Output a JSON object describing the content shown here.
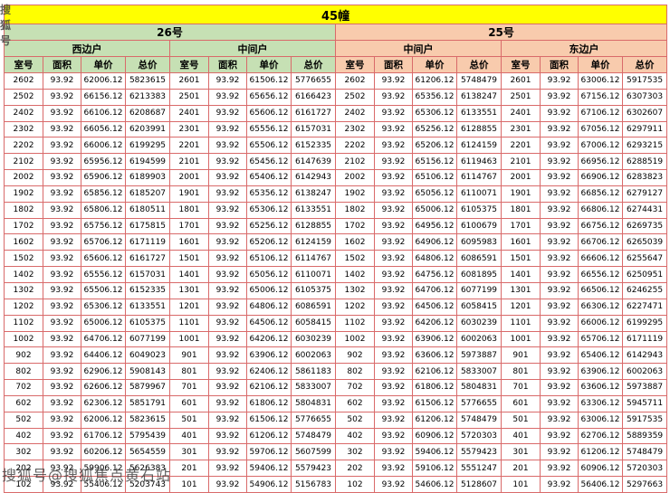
{
  "table": {
    "building_label": "45幢",
    "colors": {
      "border": "#d96a6a",
      "title_bg": "#ffff00",
      "section_26_bg": "#c6e0b4",
      "section_25_bg": "#f8cbad",
      "watermark": "#3f3f3f"
    },
    "sections": [
      {
        "label": "26号",
        "bg": "#c6e0b4",
        "groups": [
          {
            "label": "西边户",
            "columns": [
              "室号",
              "面积",
              "单价",
              "总价"
            ],
            "rows": [
              [
                "2602",
                "93.92",
                "62006.12",
                "5823615"
              ],
              [
                "2502",
                "93.92",
                "66156.12",
                "6213383"
              ],
              [
                "2402",
                "93.92",
                "66106.12",
                "6208687"
              ],
              [
                "2302",
                "93.92",
                "66056.12",
                "6203991"
              ],
              [
                "2202",
                "93.92",
                "66006.12",
                "6199295"
              ],
              [
                "2102",
                "93.92",
                "65956.12",
                "6194599"
              ],
              [
                "2002",
                "93.92",
                "65906.12",
                "6189903"
              ],
              [
                "1902",
                "93.92",
                "65856.12",
                "6185207"
              ],
              [
                "1802",
                "93.92",
                "65806.12",
                "6180511"
              ],
              [
                "1702",
                "93.92",
                "65756.12",
                "6175815"
              ],
              [
                "1602",
                "93.92",
                "65706.12",
                "6171119"
              ],
              [
                "1502",
                "93.92",
                "65606.12",
                "6161727"
              ],
              [
                "1402",
                "93.92",
                "65556.12",
                "6157031"
              ],
              [
                "1302",
                "93.92",
                "65506.12",
                "6152335"
              ],
              [
                "1202",
                "93.92",
                "65306.12",
                "6133551"
              ],
              [
                "1102",
                "93.92",
                "65006.12",
                "6105375"
              ],
              [
                "1002",
                "93.92",
                "64706.12",
                "6077199"
              ],
              [
                "902",
                "93.92",
                "64406.12",
                "6049023"
              ],
              [
                "802",
                "93.92",
                "62906.12",
                "5908143"
              ],
              [
                "702",
                "93.92",
                "62606.12",
                "5879967"
              ],
              [
                "602",
                "93.92",
                "62306.12",
                "5851791"
              ],
              [
                "502",
                "93.92",
                "62006.12",
                "5823615"
              ],
              [
                "402",
                "93.92",
                "61706.12",
                "5795439"
              ],
              [
                "302",
                "93.92",
                "60206.12",
                "5654559"
              ],
              [
                "202",
                "93.92",
                "59906.12",
                "5626383"
              ],
              [
                "102",
                "93.92",
                "55406.12",
                "5203743"
              ]
            ]
          },
          {
            "label": "中间户",
            "columns": [
              "室号",
              "面积",
              "单价",
              "总价"
            ],
            "rows": [
              [
                "2601",
                "93.92",
                "61506.12",
                "5776655"
              ],
              [
                "2501",
                "93.92",
                "65656.12",
                "6166423"
              ],
              [
                "2401",
                "93.92",
                "65606.12",
                "6161727"
              ],
              [
                "2301",
                "93.92",
                "65556.12",
                "6157031"
              ],
              [
                "2201",
                "93.92",
                "65506.12",
                "6152335"
              ],
              [
                "2101",
                "93.92",
                "65456.12",
                "6147639"
              ],
              [
                "2001",
                "93.92",
                "65406.12",
                "6142943"
              ],
              [
                "1901",
                "93.92",
                "65356.12",
                "6138247"
              ],
              [
                "1801",
                "93.92",
                "65306.12",
                "6133551"
              ],
              [
                "1701",
                "93.92",
                "65256.12",
                "6128855"
              ],
              [
                "1601",
                "93.92",
                "65206.12",
                "6124159"
              ],
              [
                "1501",
                "93.92",
                "65106.12",
                "6114767"
              ],
              [
                "1401",
                "93.92",
                "65056.12",
                "6110071"
              ],
              [
                "1301",
                "93.92",
                "65006.12",
                "6105375"
              ],
              [
                "1201",
                "93.92",
                "64806.12",
                "6086591"
              ],
              [
                "1101",
                "93.92",
                "64506.12",
                "6058415"
              ],
              [
                "1001",
                "93.92",
                "64206.12",
                "6030239"
              ],
              [
                "901",
                "93.92",
                "63906.12",
                "6002063"
              ],
              [
                "801",
                "93.92",
                "62406.12",
                "5861183"
              ],
              [
                "701",
                "93.92",
                "62106.12",
                "5833007"
              ],
              [
                "601",
                "93.92",
                "61806.12",
                "5804831"
              ],
              [
                "501",
                "93.92",
                "61506.12",
                "5776655"
              ],
              [
                "401",
                "93.92",
                "61206.12",
                "5748479"
              ],
              [
                "301",
                "93.92",
                "59706.12",
                "5607599"
              ],
              [
                "201",
                "93.92",
                "59406.12",
                "5579423"
              ],
              [
                "101",
                "93.92",
                "54906.12",
                "5156783"
              ]
            ]
          }
        ]
      },
      {
        "label": "25号",
        "bg": "#f8cbad",
        "groups": [
          {
            "label": "中间户",
            "columns": [
              "室号",
              "面积",
              "单价",
              "总价"
            ],
            "rows": [
              [
                "2602",
                "93.92",
                "61206.12",
                "5748479"
              ],
              [
                "2502",
                "93.92",
                "65356.12",
                "6138247"
              ],
              [
                "2402",
                "93.92",
                "65306.12",
                "6133551"
              ],
              [
                "2302",
                "93.92",
                "65256.12",
                "6128855"
              ],
              [
                "2202",
                "93.92",
                "65206.12",
                "6124159"
              ],
              [
                "2102",
                "93.92",
                "65156.12",
                "6119463"
              ],
              [
                "2002",
                "93.92",
                "65106.12",
                "6114767"
              ],
              [
                "1902",
                "93.92",
                "65056.12",
                "6110071"
              ],
              [
                "1802",
                "93.92",
                "65006.12",
                "6105375"
              ],
              [
                "1702",
                "93.92",
                "64956.12",
                "6100679"
              ],
              [
                "1602",
                "93.92",
                "64906.12",
                "6095983"
              ],
              [
                "1502",
                "93.92",
                "64806.12",
                "6086591"
              ],
              [
                "1402",
                "93.92",
                "64756.12",
                "6081895"
              ],
              [
                "1302",
                "93.92",
                "64706.12",
                "6077199"
              ],
              [
                "1202",
                "93.92",
                "64506.12",
                "6058415"
              ],
              [
                "1102",
                "93.92",
                "64206.12",
                "6030239"
              ],
              [
                "1002",
                "93.92",
                "63906.12",
                "6002063"
              ],
              [
                "902",
                "93.92",
                "63606.12",
                "5973887"
              ],
              [
                "802",
                "93.92",
                "62106.12",
                "5833007"
              ],
              [
                "702",
                "93.92",
                "61806.12",
                "5804831"
              ],
              [
                "602",
                "93.92",
                "61506.12",
                "5776655"
              ],
              [
                "502",
                "93.92",
                "61206.12",
                "5748479"
              ],
              [
                "402",
                "93.92",
                "60906.12",
                "5720303"
              ],
              [
                "302",
                "93.92",
                "59406.12",
                "5579423"
              ],
              [
                "202",
                "93.92",
                "59106.12",
                "5551247"
              ],
              [
                "102",
                "93.92",
                "54606.12",
                "5128607"
              ]
            ]
          },
          {
            "label": "东边户",
            "columns": [
              "室号",
              "面积",
              "单价",
              "总价"
            ],
            "rows": [
              [
                "2601",
                "93.92",
                "63006.12",
                "5917535"
              ],
              [
                "2501",
                "93.92",
                "67156.12",
                "6307303"
              ],
              [
                "2401",
                "93.92",
                "67106.12",
                "6302607"
              ],
              [
                "2301",
                "93.92",
                "67056.12",
                "6297911"
              ],
              [
                "2201",
                "93.92",
                "67006.12",
                "6293215"
              ],
              [
                "2101",
                "93.92",
                "66956.12",
                "6288519"
              ],
              [
                "2001",
                "93.92",
                "66906.12",
                "6283823"
              ],
              [
                "1901",
                "93.92",
                "66856.12",
                "6279127"
              ],
              [
                "1801",
                "93.92",
                "66806.12",
                "6274431"
              ],
              [
                "1701",
                "93.92",
                "66756.12",
                "6269735"
              ],
              [
                "1601",
                "93.92",
                "66706.12",
                "6265039"
              ],
              [
                "1501",
                "93.92",
                "66606.12",
                "6255647"
              ],
              [
                "1401",
                "93.92",
                "66556.12",
                "6250951"
              ],
              [
                "1301",
                "93.92",
                "66506.12",
                "6246255"
              ],
              [
                "1201",
                "93.92",
                "66306.12",
                "6227471"
              ],
              [
                "1101",
                "93.92",
                "66006.12",
                "6199295"
              ],
              [
                "1001",
                "93.92",
                "65706.12",
                "6171119"
              ],
              [
                "901",
                "93.92",
                "65406.12",
                "6142943"
              ],
              [
                "801",
                "93.92",
                "63906.12",
                "6002063"
              ],
              [
                "701",
                "93.92",
                "63606.12",
                "5973887"
              ],
              [
                "601",
                "93.92",
                "63306.12",
                "5945711"
              ],
              [
                "501",
                "93.92",
                "63006.12",
                "5917535"
              ],
              [
                "401",
                "93.92",
                "62706.12",
                "5889359"
              ],
              [
                "301",
                "93.92",
                "61206.12",
                "5748479"
              ],
              [
                "201",
                "93.92",
                "60906.12",
                "5720303"
              ],
              [
                "101",
                "93.92",
                "56406.12",
                "5297663"
              ]
            ]
          }
        ]
      }
    ]
  },
  "watermarks": {
    "top_left": "搜狐号",
    "bottom_left": "搜狐号@搜狐焦点黄石站",
    "color": "#3f3f3f"
  }
}
